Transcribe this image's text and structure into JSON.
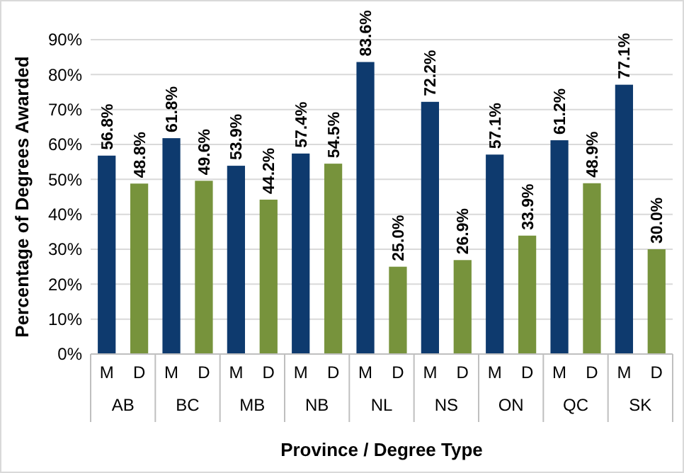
{
  "chart_data": {
    "type": "bar",
    "xlabel": "Province / Degree Type",
    "ylabel": "Percentage of Degrees Awarded",
    "categories": [
      "AB",
      "BC",
      "MB",
      "NB",
      "NL",
      "NS",
      "ON",
      "QC",
      "SK"
    ],
    "series": [
      {
        "name": "M",
        "color": "#0e3a6e",
        "values": [
          56.8,
          61.8,
          53.9,
          57.4,
          83.6,
          72.2,
          57.1,
          61.2,
          77.1
        ],
        "value_labels": [
          "56.8%",
          "61.8%",
          "53.9%",
          "57.4%",
          "83.6%",
          "72.2%",
          "57.1%",
          "61.2%",
          "77.1%"
        ]
      },
      {
        "name": "D",
        "color": "#77933c",
        "values": [
          48.8,
          49.6,
          44.2,
          54.5,
          25.0,
          26.9,
          33.9,
          48.9,
          30.0
        ],
        "value_labels": [
          "48.8%",
          "49.6%",
          "44.2%",
          "54.5%",
          "25.0%",
          "26.9%",
          "33.9%",
          "48.9%",
          "30.0%"
        ]
      }
    ],
    "ylim": [
      0,
      90
    ],
    "yticks": [
      {
        "value": 0,
        "label": "0%"
      },
      {
        "value": 10,
        "label": "10%"
      },
      {
        "value": 20,
        "label": "20%"
      },
      {
        "value": 30,
        "label": "30%"
      },
      {
        "value": 40,
        "label": "40%"
      },
      {
        "value": 50,
        "label": "50%"
      },
      {
        "value": 60,
        "label": "60%"
      },
      {
        "value": 70,
        "label": "70%"
      },
      {
        "value": 80,
        "label": "80%"
      },
      {
        "value": 90,
        "label": "90%"
      }
    ],
    "grid": true
  }
}
